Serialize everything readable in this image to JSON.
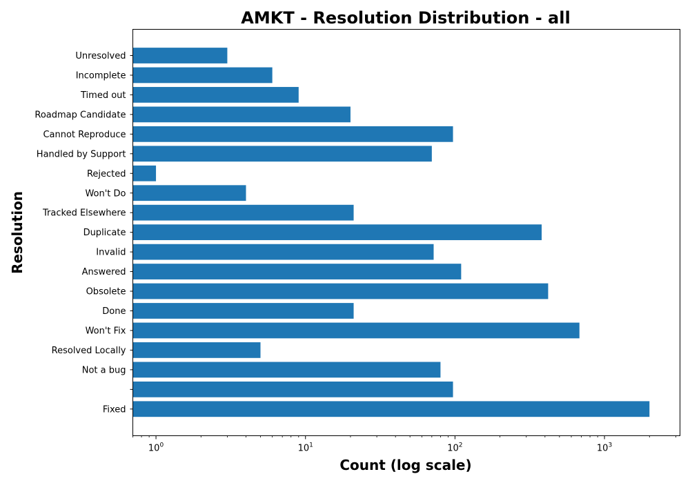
{
  "chart_data": {
    "type": "bar",
    "orientation": "horizontal",
    "title": "AMKT - Resolution Distribution - all",
    "xlabel": "Count (log scale)",
    "ylabel": "Resolution",
    "x_scale": "log",
    "xlim": [
      0.7,
      3200
    ],
    "x_ticks": [
      {
        "value": 1,
        "base": "10",
        "exp": "0"
      },
      {
        "value": 10,
        "base": "10",
        "exp": "1"
      },
      {
        "value": 100,
        "base": "10",
        "exp": "2"
      },
      {
        "value": 1000,
        "base": "10",
        "exp": "3"
      }
    ],
    "grid": false,
    "bar_color": "#1f77b4",
    "categories": [
      "Fixed",
      "",
      "Not a bug",
      "Resolved Locally",
      "Won't Fix",
      "Done",
      "Obsolete",
      "Answered",
      "Invalid",
      "Duplicate",
      "Tracked Elsewhere",
      "Won't Do",
      "Rejected",
      "Handled by Support",
      "Cannot Reproduce",
      "Roadmap Candidate",
      "Timed out",
      "Incomplete",
      "Unresolved"
    ],
    "values": [
      2000,
      97,
      80,
      5,
      680,
      21,
      420,
      110,
      72,
      380,
      21,
      4,
      1,
      70,
      97,
      20,
      9,
      6,
      3
    ]
  }
}
